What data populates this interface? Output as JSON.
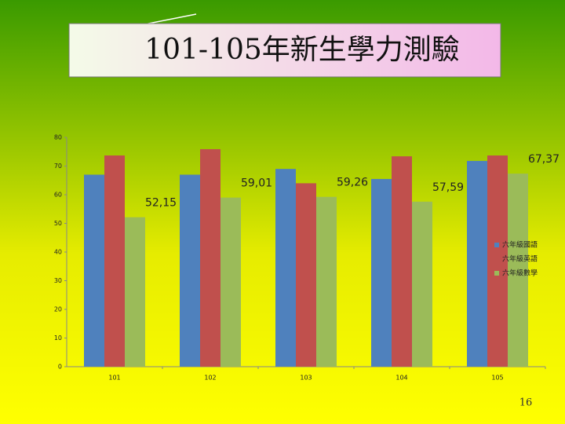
{
  "chart_data": {
    "type": "bar",
    "title": "101-105年新生學力測驗",
    "categories": [
      "101",
      "102",
      "103",
      "104",
      "105"
    ],
    "series": [
      {
        "name": "六年級國語",
        "color": "#4f81bd",
        "values": [
          67,
          67,
          69,
          65.5,
          71.8
        ]
      },
      {
        "name": "六年級英語",
        "color": "#c0504d",
        "values": [
          73.7,
          75.9,
          64,
          73.4,
          73.7
        ]
      },
      {
        "name": "六年級數學",
        "color": "#9bbb59",
        "values": [
          52.15,
          59.01,
          59.26,
          57.59,
          67.37
        ],
        "value_labels": [
          "52,15",
          "59,01",
          "59,26",
          "57,59",
          "67,37"
        ]
      }
    ],
    "ylim": [
      0,
      80
    ],
    "yticks": [
      0,
      10,
      20,
      30,
      40,
      50,
      60,
      70,
      80
    ],
    "grid": false,
    "legend": "right"
  },
  "page_number": "16"
}
